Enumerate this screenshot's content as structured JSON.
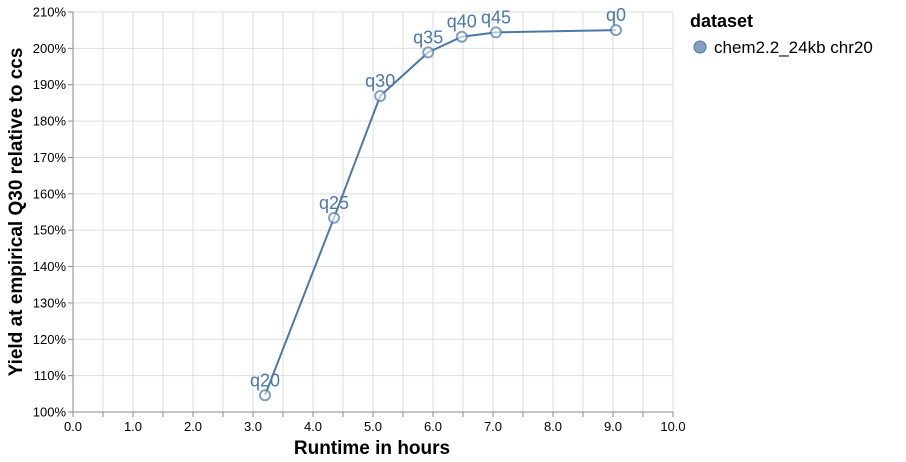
{
  "chart_data": {
    "type": "line",
    "title": "",
    "xlabel": "Runtime in hours",
    "ylabel": "Yield at empirical Q30 relative to ccs",
    "xlim": [
      0,
      10
    ],
    "ylim": [
      100,
      210
    ],
    "x_ticks": [
      "0.0",
      "1.0",
      "2.0",
      "3.0",
      "4.0",
      "5.0",
      "6.0",
      "7.0",
      "8.0",
      "9.0",
      "10.0"
    ],
    "y_ticks": [
      "100%",
      "110%",
      "120%",
      "130%",
      "140%",
      "150%",
      "160%",
      "170%",
      "180%",
      "190%",
      "200%",
      "210%"
    ],
    "grid": true,
    "legend": {
      "title": "dataset",
      "placement": "right",
      "entries": [
        "chem2.2_24kb chr20"
      ]
    },
    "series": [
      {
        "name": "chem2.2_24kb chr20",
        "color": "#4c78a8",
        "points": [
          {
            "label": "q20",
            "x": 3.2,
            "y": 104.6
          },
          {
            "label": "q25",
            "x": 4.35,
            "y": 153.4
          },
          {
            "label": "q30",
            "x": 5.12,
            "y": 186.9
          },
          {
            "label": "q35",
            "x": 5.92,
            "y": 198.9
          },
          {
            "label": "q40",
            "x": 6.48,
            "y": 203.2
          },
          {
            "label": "q45",
            "x": 7.05,
            "y": 204.4
          },
          {
            "label": "q0",
            "x": 9.05,
            "y": 205.0
          }
        ]
      }
    ]
  }
}
